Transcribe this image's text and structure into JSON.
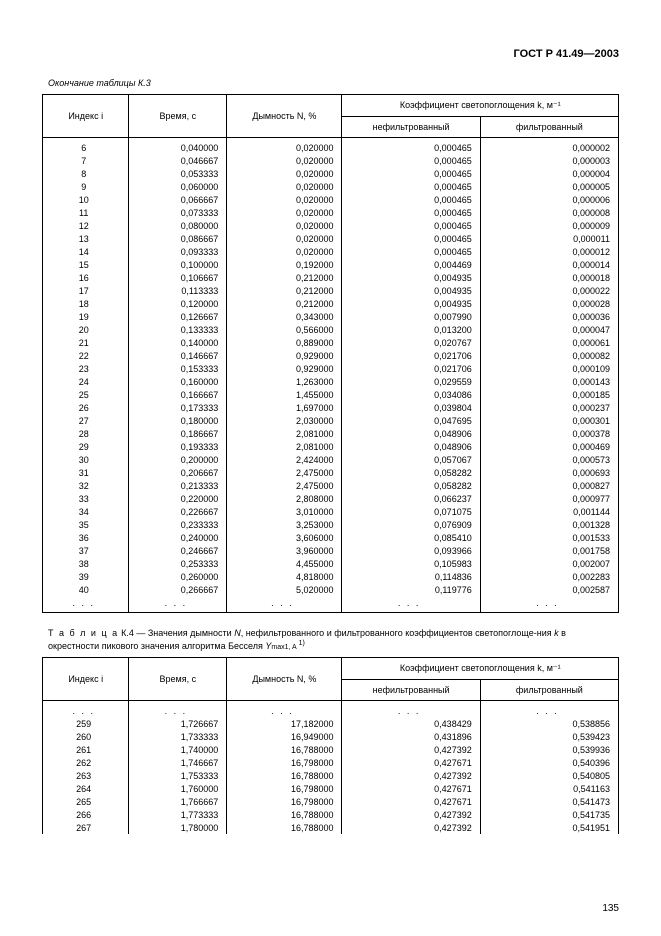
{
  "doc_code": "ГОСТ Р 41.49—2003",
  "caption_k3": "Окончание таблицы К.3",
  "headers": {
    "index": "Индекс  i",
    "time": "Время, с",
    "smoke": "Дымность N, %",
    "coef_group": "Коэффициент светопоглощения k, м⁻¹",
    "unfiltered": "нефильтрованный",
    "filtered": "фильтрованный"
  },
  "table_k3_rows": [
    {
      "i": "6",
      "t": "0,040000",
      "n": "0,020000",
      "u": "0,000465",
      "f": "0,000002"
    },
    {
      "i": "7",
      "t": "0,046667",
      "n": "0,020000",
      "u": "0,000465",
      "f": "0,000003"
    },
    {
      "i": "8",
      "t": "0,053333",
      "n": "0,020000",
      "u": "0,000465",
      "f": "0,000004"
    },
    {
      "i": "9",
      "t": "0,060000",
      "n": "0,020000",
      "u": "0,000465",
      "f": "0,000005"
    },
    {
      "i": "10",
      "t": "0,066667",
      "n": "0,020000",
      "u": "0,000465",
      "f": "0,000006"
    },
    {
      "i": "11",
      "t": "0,073333",
      "n": "0,020000",
      "u": "0,000465",
      "f": "0,000008"
    },
    {
      "i": "12",
      "t": "0,080000",
      "n": "0,020000",
      "u": "0,000465",
      "f": "0,000009"
    },
    {
      "i": "13",
      "t": "0,086667",
      "n": "0,020000",
      "u": "0,000465",
      "f": "0,000011"
    },
    {
      "i": "14",
      "t": "0,093333",
      "n": "0,020000",
      "u": "0,000465",
      "f": "0,000012"
    },
    {
      "i": "15",
      "t": "0,100000",
      "n": "0,192000",
      "u": "0,004469",
      "f": "0,000014"
    },
    {
      "i": "16",
      "t": "0,106667",
      "n": "0,212000",
      "u": "0,004935",
      "f": "0,000018"
    },
    {
      "i": "17",
      "t": "0,113333",
      "n": "0,212000",
      "u": "0,004935",
      "f": "0,000022"
    },
    {
      "i": "18",
      "t": "0,120000",
      "n": "0,212000",
      "u": "0,004935",
      "f": "0,000028"
    },
    {
      "i": "19",
      "t": "0,126667",
      "n": "0,343000",
      "u": "0,007990",
      "f": "0,000036"
    },
    {
      "i": "20",
      "t": "0,133333",
      "n": "0,566000",
      "u": "0,013200",
      "f": "0,000047"
    },
    {
      "i": "21",
      "t": "0,140000",
      "n": "0,889000",
      "u": "0,020767",
      "f": "0,000061"
    },
    {
      "i": "22",
      "t": "0,146667",
      "n": "0,929000",
      "u": "0,021706",
      "f": "0,000082"
    },
    {
      "i": "23",
      "t": "0,153333",
      "n": "0,929000",
      "u": "0,021706",
      "f": "0,000109"
    },
    {
      "i": "24",
      "t": "0,160000",
      "n": "1,263000",
      "u": "0,029559",
      "f": "0,000143"
    },
    {
      "i": "25",
      "t": "0,166667",
      "n": "1,455000",
      "u": "0,034086",
      "f": "0,000185"
    },
    {
      "i": "26",
      "t": "0,173333",
      "n": "1,697000",
      "u": "0,039804",
      "f": "0,000237"
    },
    {
      "i": "27",
      "t": "0,180000",
      "n": "2,030000",
      "u": "0,047695",
      "f": "0,000301"
    },
    {
      "i": "28",
      "t": "0,186667",
      "n": "2,081000",
      "u": "0,048906",
      "f": "0,000378"
    },
    {
      "i": "29",
      "t": "0,193333",
      "n": "2,081000",
      "u": "0,048906",
      "f": "0,000469"
    },
    {
      "i": "30",
      "t": "0,200000",
      "n": "2,424000",
      "u": "0,057067",
      "f": "0,000573"
    },
    {
      "i": "31",
      "t": "0,206667",
      "n": "2,475000",
      "u": "0,058282",
      "f": "0,000693"
    },
    {
      "i": "32",
      "t": "0,213333",
      "n": "2,475000",
      "u": "0,058282",
      "f": "0,000827"
    },
    {
      "i": "33",
      "t": "0,220000",
      "n": "2,808000",
      "u": "0,066237",
      "f": "0,000977"
    },
    {
      "i": "34",
      "t": "0,226667",
      "n": "3,010000",
      "u": "0,071075",
      "f": "0,001144"
    },
    {
      "i": "35",
      "t": "0,233333",
      "n": "3,253000",
      "u": "0,076909",
      "f": "0,001328"
    },
    {
      "i": "36",
      "t": "0,240000",
      "n": "3,606000",
      "u": "0,085410",
      "f": "0,001533"
    },
    {
      "i": "37",
      "t": "0,246667",
      "n": "3,960000",
      "u": "0,093966",
      "f": "0,001758"
    },
    {
      "i": "38",
      "t": "0,253333",
      "n": "4,455000",
      "u": "0,105983",
      "f": "0,002007"
    },
    {
      "i": "39",
      "t": "0,260000",
      "n": "4,818000",
      "u": "0,114836",
      "f": "0,002283"
    },
    {
      "i": "40",
      "t": "0,266667",
      "n": "5,020000",
      "u": "0,119776",
      "f": "0,002587"
    },
    {
      "i": ". . .",
      "t": ". . .",
      "n": ". . .",
      "u": ". . .",
      "f": ". . .",
      "dots": true
    }
  ],
  "caption_k4_parts": {
    "lead": "Т а б л и ц а",
    "num": "  К.4 — Значения  дымности  ",
    "n_italic": "N",
    "mid": ", нефильтрованного и фильтрованного коэффициентов светопоглоще-ния ",
    "k_italic": "k",
    "rest": " в окрестности пикового значения алгоритма Бесселя ",
    "y_italic": "Y",
    "sub": "max1, A",
    "sup": "  1)"
  },
  "table_k4_rows": [
    {
      "i": ". . .",
      "t": ". . .",
      "n": ". . .",
      "u": ". . .",
      "f": ". . .",
      "dots": true
    },
    {
      "i": "259",
      "t": "1,726667",
      "n": "17,182000",
      "u": "0,438429",
      "f": "0,538856"
    },
    {
      "i": "260",
      "t": "1,733333",
      "n": "16,949000",
      "u": "0,431896",
      "f": "0,539423"
    },
    {
      "i": "261",
      "t": "1,740000",
      "n": "16,788000",
      "u": "0,427392",
      "f": "0,539936"
    },
    {
      "i": "262",
      "t": "1,746667",
      "n": "16,798000",
      "u": "0,427671",
      "f": "0,540396"
    },
    {
      "i": "263",
      "t": "1,753333",
      "n": "16,788000",
      "u": "0,427392",
      "f": "0,540805"
    },
    {
      "i": "264",
      "t": "1,760000",
      "n": "16,798000",
      "u": "0,427671",
      "f": "0,541163"
    },
    {
      "i": "265",
      "t": "1,766667",
      "n": "16,798000",
      "u": "0,427671",
      "f": "0,541473"
    },
    {
      "i": "266",
      "t": "1,773333",
      "n": "16,788000",
      "u": "0,427392",
      "f": "0,541735"
    },
    {
      "i": "267",
      "t": "1,780000",
      "n": "16,788000",
      "u": "0,427392",
      "f": "0,541951"
    }
  ],
  "pagenum": "135"
}
